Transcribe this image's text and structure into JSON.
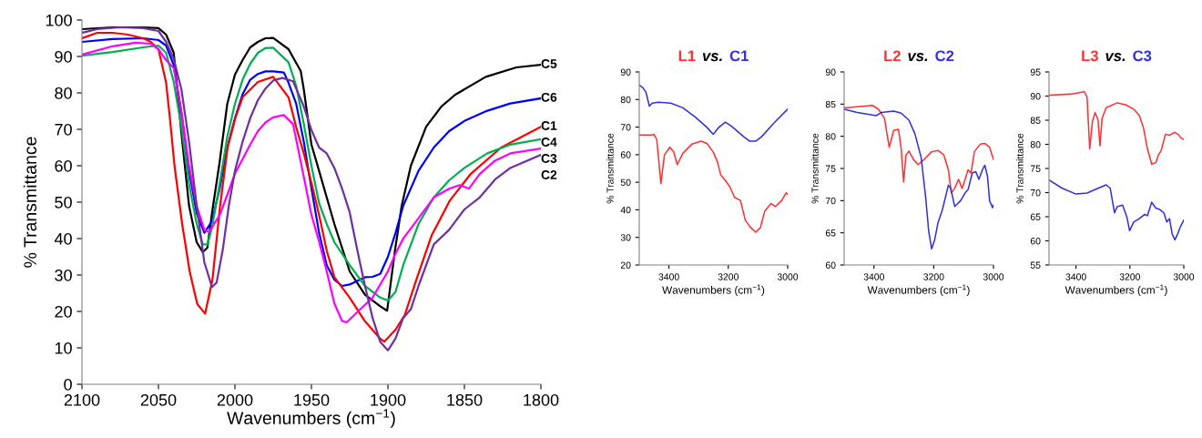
{
  "chart_data": [
    {
      "type": "line",
      "xlabel": "Wavenumbers (cm$^{−1}$)",
      "ylabel": "% Transmittance",
      "xlim": [
        2100,
        1800
      ],
      "xticks": [
        2100,
        2050,
        2000,
        1950,
        1900,
        1850,
        1800
      ],
      "ylim": [
        0,
        100
      ],
      "yticks": [
        0,
        10,
        20,
        30,
        40,
        50,
        60,
        70,
        80,
        90,
        100
      ],
      "grid": false,
      "legend": false,
      "marker": "none",
      "line_style": "solid",
      "series": [
        {
          "name": "C5",
          "color": "#000000",
          "x": [
            2100,
            2080,
            2060,
            2050,
            2045,
            2040,
            2035,
            2030,
            2025,
            2021,
            2018,
            2015,
            2010,
            2005,
            2000,
            1995,
            1990,
            1985,
            1980,
            1975,
            1965,
            1957,
            1955,
            1950,
            1945,
            1935,
            1925,
            1915,
            1905,
            1900.5,
            1895.4,
            1891,
            1885,
            1875,
            1865,
            1856,
            1836,
            1816,
            1800
          ],
          "values": [
            97.5,
            98,
            98,
            97.8,
            96,
            91,
            69,
            49,
            39,
            36.3,
            37.5,
            47,
            61,
            77,
            85,
            89,
            92.5,
            94,
            95,
            95.1,
            92,
            86,
            81,
            65.8,
            58.6,
            44,
            31,
            24.6,
            21.4,
            20.2,
            36.7,
            49,
            60,
            70.7,
            76.3,
            79.5,
            84.4,
            87,
            87.7
          ]
        },
        {
          "name": "C6",
          "color": "#0000ff",
          "x": [
            2100,
            2080,
            2060,
            2050,
            2045,
            2040,
            2035,
            2030,
            2025,
            2020,
            2015,
            2010,
            2005,
            2000,
            1995,
            1990,
            1985,
            1980,
            1975,
            1968,
            1965,
            1960,
            1955,
            1950,
            1945,
            1940,
            1935,
            1930,
            1925,
            1915,
            1910,
            1905,
            1900,
            1895,
            1890,
            1880,
            1870,
            1860,
            1850,
            1835,
            1820,
            1800
          ],
          "values": [
            94,
            94.8,
            95,
            94.5,
            93,
            87.6,
            74.7,
            58.6,
            47,
            41.6,
            44.8,
            53.7,
            65,
            73,
            79.6,
            83.6,
            85.2,
            85.9,
            85.9,
            85.6,
            82.8,
            77.1,
            66.6,
            53.8,
            41.6,
            32.7,
            28.7,
            27,
            27.4,
            29.4,
            29.5,
            30.3,
            35,
            41.6,
            49,
            58.6,
            65,
            69.5,
            72.3,
            75.1,
            77.1,
            78.5
          ]
        },
        {
          "name": "C1",
          "color": "#ff0000",
          "x": [
            2100,
            2090,
            2080,
            2070,
            2060,
            2055,
            2050,
            2045,
            2042.5,
            2039.5,
            2034.5,
            2029.6,
            2024.6,
            2019.5,
            2014.7,
            2009.7,
            2004.8,
            1999.8,
            1995,
            1985,
            1975,
            1965,
            1960,
            1955,
            1950,
            1945,
            1940,
            1935,
            1925,
            1915,
            1905,
            1902.4,
            1895,
            1889,
            1881.4,
            1871.5,
            1859.6,
            1845.8,
            1826,
            1800
          ],
          "values": [
            95,
            96.5,
            96.5,
            96,
            95,
            94,
            92,
            82.8,
            73,
            60,
            44,
            31,
            22,
            19.4,
            28.7,
            49,
            65,
            73,
            78.8,
            83,
            84.4,
            78.8,
            70.7,
            63.4,
            55.3,
            46.5,
            36.7,
            29.4,
            23.8,
            17.3,
            12.5,
            11.7,
            15,
            19,
            28.7,
            40.8,
            50.4,
            57.8,
            65,
            70.7
          ]
        },
        {
          "name": "C4",
          "color": "#00b050",
          "x": [
            2100,
            2080,
            2060,
            2050,
            2045,
            2040,
            2035,
            2030,
            2025,
            2021,
            2018,
            2015,
            2010,
            2005,
            2000,
            1995,
            1990,
            1985,
            1980,
            1975,
            1965,
            1960,
            1955,
            1950,
            1945,
            1940,
            1935,
            1925,
            1915,
            1905,
            1900,
            1895,
            1890,
            1880,
            1870,
            1860,
            1850,
            1835,
            1820,
            1800
          ],
          "values": [
            90.2,
            91.2,
            92.5,
            93,
            91,
            83,
            70.7,
            55,
            44,
            38.4,
            38.4,
            43,
            55,
            68,
            77,
            83.6,
            88,
            91,
            92.3,
            92.4,
            88.4,
            82,
            71.5,
            60,
            49.7,
            44,
            39,
            32.7,
            27,
            23.8,
            23,
            25.4,
            32.7,
            44,
            51.3,
            56,
            59.4,
            63.4,
            65.8,
            67.3
          ]
        },
        {
          "name": "C3",
          "color": "#ff00ff",
          "x": [
            2100,
            2080,
            2065,
            2055,
            2050,
            2045,
            2040,
            2035,
            2030,
            2025,
            2020,
            2017,
            2010,
            2005,
            2000,
            1995,
            1990,
            1985,
            1980,
            1975,
            1968,
            1962,
            1955,
            1950,
            1945,
            1940,
            1935,
            1930,
            1927,
            1920,
            1910,
            1900,
            1895,
            1890,
            1880,
            1870,
            1860,
            1853,
            1847,
            1840,
            1830,
            1820,
            1800
          ],
          "values": [
            90.5,
            92.8,
            93.8,
            93.5,
            92,
            89,
            86.8,
            74.7,
            60,
            49,
            42.4,
            41.8,
            46.4,
            52,
            57.8,
            61.8,
            65.8,
            69.5,
            71.9,
            73.3,
            73.9,
            71.4,
            57,
            46.5,
            39.2,
            31,
            22.2,
            17.4,
            17,
            19.8,
            23.8,
            31,
            35.9,
            40,
            45.6,
            51.3,
            53.7,
            54.7,
            53.7,
            57.7,
            61.4,
            63.4,
            64.7
          ]
        },
        {
          "name": "C2",
          "color": "#7030a0",
          "x": [
            2100,
            2090,
            2075,
            2060,
            2050,
            2045,
            2040,
            2035,
            2030,
            2025,
            2020,
            2015,
            2012,
            2008,
            2004,
            2000,
            1995,
            1990,
            1985,
            1980,
            1975,
            1969,
            1962,
            1955,
            1950,
            1945,
            1940,
            1935,
            1930,
            1925,
            1920,
            1915,
            1910,
            1905,
            1900,
            1895,
            1890,
            1885,
            1880,
            1870,
            1860,
            1850,
            1840,
            1830,
            1820,
            1800
          ],
          "values": [
            96.5,
            97.5,
            98,
            97.8,
            97,
            94,
            89.3,
            81,
            66.6,
            49,
            33.5,
            26.7,
            27.9,
            36.8,
            49,
            58.6,
            66.6,
            73.1,
            78,
            81.2,
            83.4,
            84.1,
            83.2,
            76.3,
            69.8,
            65,
            63.4,
            59.4,
            53.8,
            47.2,
            36.8,
            27,
            18.2,
            11.6,
            9.3,
            12.6,
            18.2,
            20.6,
            27,
            38.4,
            42.4,
            48,
            51.3,
            56.2,
            59.4,
            63
          ]
        }
      ]
    },
    {
      "type": "line",
      "title": "L1 vs. C1",
      "xlabel": "Wavenumbers (cm$^{−1}$)",
      "ylabel": "% Transmittance",
      "xlim": [
        3500,
        3000
      ],
      "xticks": [
        3400,
        3200,
        3000
      ],
      "ylim": [
        20,
        90
      ],
      "yticks": [
        20,
        30,
        40,
        50,
        60,
        70,
        80,
        90
      ],
      "grid": false,
      "legend": false,
      "marker": "none",
      "line_style": "solid",
      "series": [
        {
          "color": "#ff3030",
          "x": [
            3500,
            3456,
            3451,
            3441,
            3427,
            3415,
            3397,
            3384,
            3372,
            3353,
            3323,
            3292,
            3272,
            3251,
            3236,
            3226,
            3210,
            3195,
            3179,
            3159,
            3143,
            3128,
            3108,
            3092,
            3077,
            3056,
            3041,
            3020,
            3005,
            3000
          ],
          "values": [
            67.1,
            67.1,
            67.4,
            65.5,
            49.5,
            60,
            62.7,
            61,
            56.4,
            60.5,
            63.8,
            64.9,
            64.1,
            61,
            57.2,
            52.8,
            50.6,
            48.4,
            44.5,
            43.4,
            36.3,
            34,
            31.9,
            33.5,
            39.6,
            42.3,
            41.2,
            43.4,
            46.2,
            45.6
          ]
        },
        {
          "color": "#3030e0",
          "x": [
            3500,
            3487,
            3477,
            3466,
            3456,
            3436,
            3394,
            3353,
            3312,
            3272,
            3251,
            3231,
            3210,
            3190,
            3149,
            3128,
            3108,
            3087,
            3046,
            3000
          ],
          "values": [
            85.3,
            84.2,
            82.5,
            77.6,
            78.7,
            79,
            78.7,
            77,
            73.7,
            69.9,
            67.4,
            70,
            71.8,
            70.4,
            66.6,
            64.9,
            64.9,
            66.6,
            71.5,
            76.5
          ]
        }
      ]
    },
    {
      "type": "line",
      "title": "L2 vs. C2",
      "xlabel": "Wavenumbers (cm$^{−1}$)",
      "ylabel": "% Transmittance",
      "xlim": [
        3500,
        3000
      ],
      "xticks": [
        3400,
        3200,
        3000
      ],
      "ylim": [
        60,
        90
      ],
      "yticks": [
        60,
        65,
        70,
        75,
        80,
        85,
        90
      ],
      "grid": false,
      "legend": false,
      "marker": "none",
      "line_style": "solid",
      "series": [
        {
          "color": "#ff3030",
          "x": [
            3500,
            3456,
            3405,
            3385,
            3365,
            3349,
            3334,
            3318,
            3309,
            3301,
            3293,
            3283,
            3268,
            3252,
            3232,
            3207,
            3186,
            3166,
            3151,
            3141,
            3130,
            3117,
            3105,
            3095,
            3085,
            3075,
            3064,
            3044,
            3029,
            3013,
            3000
          ],
          "values": [
            84.4,
            84.6,
            84.8,
            84.2,
            82.8,
            78.3,
            80.9,
            81.1,
            78.1,
            72.9,
            77.1,
            77.7,
            76.4,
            75.6,
            76.4,
            77.6,
            77.8,
            77.1,
            74.8,
            71.2,
            71.9,
            73.3,
            71.9,
            73.3,
            74.8,
            74.3,
            77.6,
            78.8,
            78.9,
            78.3,
            76.4
          ]
        },
        {
          "color": "#3030e0",
          "x": [
            3500,
            3456,
            3415,
            3393,
            3375,
            3334,
            3309,
            3283,
            3263,
            3242,
            3227,
            3217,
            3207,
            3197,
            3186,
            3171,
            3151,
            3143,
            3130,
            3110,
            3095,
            3085,
            3071,
            3059,
            3049,
            3037,
            3029,
            3020,
            3013,
            3003,
            3000
          ],
          "values": [
            84.2,
            83.7,
            83.4,
            83.2,
            83.7,
            83.9,
            83.6,
            82.5,
            80.4,
            76.7,
            70.5,
            65.3,
            62.5,
            63.9,
            66.5,
            68.6,
            72.4,
            71.9,
            69.1,
            70,
            71.2,
            71.7,
            74.3,
            74.5,
            73.3,
            74.8,
            75.5,
            73.8,
            70,
            68.9,
            69.3
          ]
        }
      ]
    },
    {
      "type": "line",
      "title": "L3 vs. C3",
      "xlabel": "Wavenumbers (cm$^{−1}$)",
      "ylabel": "% Transmittance",
      "xlim": [
        3500,
        3000
      ],
      "xticks": [
        3400,
        3200,
        3000
      ],
      "ylim": [
        55,
        95
      ],
      "yticks": [
        55,
        60,
        65,
        70,
        75,
        80,
        85,
        90,
        95
      ],
      "grid": false,
      "legend": false,
      "marker": "none",
      "line_style": "solid",
      "series": [
        {
          "color": "#ff3030",
          "x": [
            3500,
            3420,
            3369,
            3359,
            3349,
            3339,
            3329,
            3318,
            3311,
            3303,
            3288,
            3247,
            3216,
            3186,
            3165,
            3150,
            3135,
            3119,
            3104,
            3094,
            3084,
            3068,
            3053,
            3033,
            3018,
            3011,
            3000
          ],
          "values": [
            90.2,
            90.4,
            90.9,
            89.8,
            79.1,
            84.7,
            86.6,
            85,
            79.7,
            85.4,
            87.6,
            88.6,
            88.2,
            87.3,
            86,
            83.5,
            79.1,
            75.9,
            76.2,
            77.8,
            78.7,
            82.1,
            81.9,
            82.5,
            81.9,
            81.3,
            81
          ]
        },
        {
          "color": "#3030e0",
          "x": [
            3500,
            3451,
            3400,
            3359,
            3318,
            3288,
            3273,
            3257,
            3247,
            3227,
            3211,
            3201,
            3186,
            3165,
            3145,
            3135,
            3119,
            3104,
            3089,
            3074,
            3063,
            3053,
            3043,
            3033,
            3023,
            3012,
            3000
          ],
          "values": [
            72.6,
            70.9,
            69.7,
            69.9,
            70.9,
            71.6,
            70.9,
            65.8,
            67.1,
            67.4,
            64.9,
            62.1,
            63.9,
            64.6,
            65.5,
            65.2,
            68,
            66.8,
            66.5,
            65.8,
            63.9,
            64.6,
            61.4,
            60.2,
            61.4,
            63,
            64.3
          ]
        }
      ]
    }
  ]
}
